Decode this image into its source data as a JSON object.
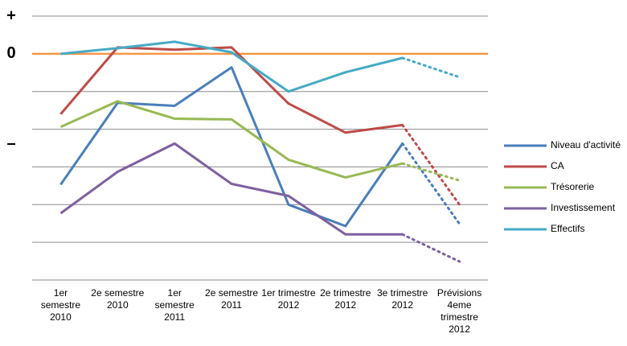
{
  "chart_data": {
    "type": "line",
    "categories": [
      "1er semestre 2010",
      "2e semestre 2010",
      "1er semestre 2011",
      "2e semestre 2011",
      "1er trimestre 2012",
      "2e trimestre 2012",
      "3e trimestre 2012",
      "Prévisions 4eme trimestre 2012"
    ],
    "series": [
      {
        "name": "Niveau d'activité",
        "color": "#4a7ebb",
        "values": [
          -3.47,
          -1.3,
          -1.38,
          -0.36,
          -4.0,
          -4.57,
          -2.38,
          -4.51
        ]
      },
      {
        "name": "CA",
        "color": "#be4b48",
        "values": [
          -1.6,
          0.17,
          0.11,
          0.17,
          -1.32,
          -2.09,
          -1.89,
          -4.0
        ]
      },
      {
        "name": "Trésorerie",
        "color": "#98b954",
        "values": [
          -1.94,
          -1.26,
          -1.72,
          -1.74,
          -2.81,
          -3.28,
          -2.91,
          -3.36
        ]
      },
      {
        "name": "Investissement",
        "color": "#7d60a0",
        "values": [
          -4.23,
          -3.13,
          -2.38,
          -3.45,
          -3.77,
          -4.79,
          -4.79,
          -5.51
        ]
      },
      {
        "name": "Effectifs",
        "color": "#46aac5",
        "values": [
          0,
          0.15,
          0.32,
          0.04,
          -1.0,
          -0.49,
          -0.11,
          -0.62
        ]
      }
    ],
    "forecast_from": 6,
    "ylim": [
      -6,
      1
    ],
    "yticks": [
      1,
      0,
      -1,
      -2,
      -3,
      -4,
      -5,
      -6
    ],
    "grid": true,
    "zero_line_color": "#f79646",
    "axis_labels": [
      {
        "value": 1,
        "label": "+",
        "color": "#70ad47"
      },
      {
        "value": 0,
        "label": "0",
        "color": "#f79646"
      },
      {
        "value": -2.4,
        "label": "–",
        "color": "#e02020"
      }
    ],
    "legend": "right"
  }
}
